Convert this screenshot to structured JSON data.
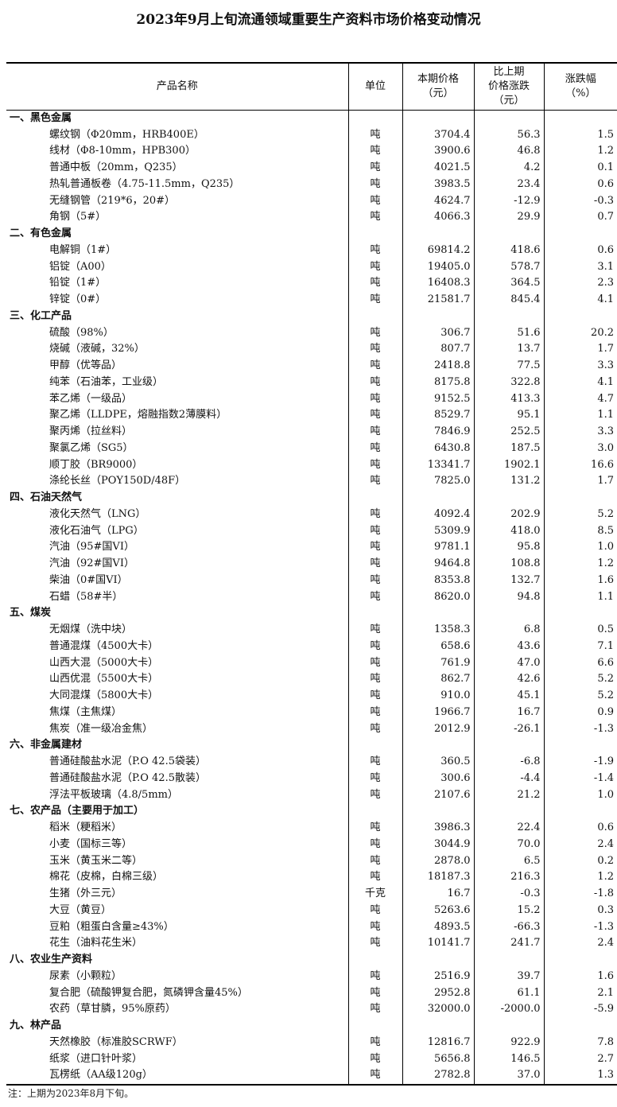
{
  "title": "2023年9月上旬流通领域重要生产资料市场价格变动情况",
  "headers": {
    "name": "产品名称",
    "unit": "单位",
    "price": [
      "本期价格",
      "（元）"
    ],
    "change": [
      "比上期",
      "价格涨跌",
      "（元）"
    ],
    "pct": [
      "涨跌幅",
      "（%）"
    ]
  },
  "sections": [
    {
      "title": "一、黑色金属",
      "items": [
        [
          "螺纹钢（Φ20mm，HRB400E）",
          "吨",
          "3704.4",
          "56.3",
          "1.5"
        ],
        [
          "线材（Φ8-10mm，HPB300）",
          "吨",
          "3900.6",
          "46.8",
          "1.2"
        ],
        [
          "普通中板（20mm，Q235）",
          "吨",
          "4021.5",
          "4.2",
          "0.1"
        ],
        [
          "热轧普通板卷（4.75-11.5mm，Q235）",
          "吨",
          "3983.5",
          "23.4",
          "0.6"
        ],
        [
          "无缝钢管（219*6，20#）",
          "吨",
          "4624.7",
          "-12.9",
          "-0.3"
        ],
        [
          "角钢（5#）",
          "吨",
          "4066.3",
          "29.9",
          "0.7"
        ]
      ]
    },
    {
      "title": "二、有色金属",
      "items": [
        [
          "电解铜（1#）",
          "吨",
          "69814.2",
          "418.6",
          "0.6"
        ],
        [
          "铝锭（A00）",
          "吨",
          "19405.0",
          "578.7",
          "3.1"
        ],
        [
          "铅锭（1#）",
          "吨",
          "16408.3",
          "364.5",
          "2.3"
        ],
        [
          "锌锭（0#）",
          "吨",
          "21581.7",
          "845.4",
          "4.1"
        ]
      ]
    },
    {
      "title": "三、化工产品",
      "items": [
        [
          "硫酸（98%）",
          "吨",
          "306.7",
          "51.6",
          "20.2"
        ],
        [
          "烧碱（液碱，32%）",
          "吨",
          "807.7",
          "13.7",
          "1.7"
        ],
        [
          "甲醇（优等品）",
          "吨",
          "2418.8",
          "77.5",
          "3.3"
        ],
        [
          "纯苯（石油苯，工业级）",
          "吨",
          "8175.8",
          "322.8",
          "4.1"
        ],
        [
          "苯乙烯（一级品）",
          "吨",
          "9152.5",
          "413.3",
          "4.7"
        ],
        [
          "聚乙烯（LLDPE，熔融指数2薄膜料）",
          "吨",
          "8529.7",
          "95.1",
          "1.1"
        ],
        [
          "聚丙烯（拉丝料）",
          "吨",
          "7846.9",
          "252.5",
          "3.3"
        ],
        [
          "聚氯乙烯（SG5）",
          "吨",
          "6430.8",
          "187.5",
          "3.0"
        ],
        [
          "顺丁胶（BR9000）",
          "吨",
          "13341.7",
          "1902.1",
          "16.6"
        ],
        [
          "涤纶长丝（POY150D/48F）",
          "吨",
          "7825.0",
          "131.2",
          "1.7"
        ]
      ]
    },
    {
      "title": "四、石油天然气",
      "items": [
        [
          "液化天然气（LNG）",
          "吨",
          "4092.4",
          "202.9",
          "5.2"
        ],
        [
          "液化石油气（LPG）",
          "吨",
          "5309.9",
          "418.0",
          "8.5"
        ],
        [
          "汽油（95#国VI）",
          "吨",
          "9781.1",
          "95.8",
          "1.0"
        ],
        [
          "汽油（92#国VI）",
          "吨",
          "9464.8",
          "108.8",
          "1.2"
        ],
        [
          "柴油（0#国VI）",
          "吨",
          "8353.8",
          "132.7",
          "1.6"
        ],
        [
          "石蜡（58#半）",
          "吨",
          "8620.0",
          "94.8",
          "1.1"
        ]
      ]
    },
    {
      "title": "五、煤炭",
      "items": [
        [
          "无烟煤（洗中块）",
          "吨",
          "1358.3",
          "6.8",
          "0.5"
        ],
        [
          "普通混煤（4500大卡）",
          "吨",
          "658.6",
          "43.6",
          "7.1"
        ],
        [
          "山西大混（5000大卡）",
          "吨",
          "761.9",
          "47.0",
          "6.6"
        ],
        [
          "山西优混（5500大卡）",
          "吨",
          "862.7",
          "42.6",
          "5.2"
        ],
        [
          "大同混煤（5800大卡）",
          "吨",
          "910.0",
          "45.1",
          "5.2"
        ],
        [
          "焦煤（主焦煤）",
          "吨",
          "1966.7",
          "16.7",
          "0.9"
        ],
        [
          "焦炭（准一级冶金焦）",
          "吨",
          "2012.9",
          "-26.1",
          "-1.3"
        ]
      ]
    },
    {
      "title": "六、非金属建材",
      "items": [
        [
          "普通硅酸盐水泥（P.O 42.5袋装）",
          "吨",
          "360.5",
          "-6.8",
          "-1.9"
        ],
        [
          "普通硅酸盐水泥（P.O 42.5散装）",
          "吨",
          "300.6",
          "-4.4",
          "-1.4"
        ],
        [
          "浮法平板玻璃（4.8/5mm）",
          "吨",
          "2107.6",
          "21.2",
          "1.0"
        ]
      ]
    },
    {
      "title": "七、农产品（主要用于加工）",
      "items": [
        [
          "稻米（粳稻米）",
          "吨",
          "3986.3",
          "22.4",
          "0.6"
        ],
        [
          "小麦（国标三等）",
          "吨",
          "3044.9",
          "70.0",
          "2.4"
        ],
        [
          "玉米（黄玉米二等）",
          "吨",
          "2878.0",
          "6.5",
          "0.2"
        ],
        [
          "棉花（皮棉，白棉三级）",
          "吨",
          "18187.3",
          "216.3",
          "1.2"
        ],
        [
          "生猪（外三元）",
          "千克",
          "16.7",
          "-0.3",
          "-1.8"
        ],
        [
          "大豆（黄豆）",
          "吨",
          "5263.6",
          "15.2",
          "0.3"
        ],
        [
          "豆粕（粗蛋白含量≥43%）",
          "吨",
          "4893.5",
          "-66.3",
          "-1.3"
        ],
        [
          "花生（油料花生米）",
          "吨",
          "10141.7",
          "241.7",
          "2.4"
        ]
      ]
    },
    {
      "title": "八、农业生产资料",
      "items": [
        [
          "尿素（小颗粒）",
          "吨",
          "2516.9",
          "39.7",
          "1.6"
        ],
        [
          "复合肥（硫酸钾复合肥，氮磷钾含量45%）",
          "吨",
          "2952.8",
          "61.1",
          "2.1"
        ],
        [
          "农药（草甘膦，95%原药）",
          "吨",
          "32000.0",
          "-2000.0",
          "-5.9"
        ]
      ]
    },
    {
      "title": "九、林产品",
      "items": [
        [
          "天然橡胶（标准胶SCRWF）",
          "吨",
          "12816.7",
          "922.9",
          "7.8"
        ],
        [
          "纸浆（进口针叶浆）",
          "吨",
          "5656.8",
          "146.5",
          "2.7"
        ],
        [
          "瓦楞纸（AA级120g）",
          "吨",
          "2782.8",
          "37.0",
          "1.3"
        ]
      ]
    }
  ],
  "note": "注：上期为2023年8月下旬。"
}
